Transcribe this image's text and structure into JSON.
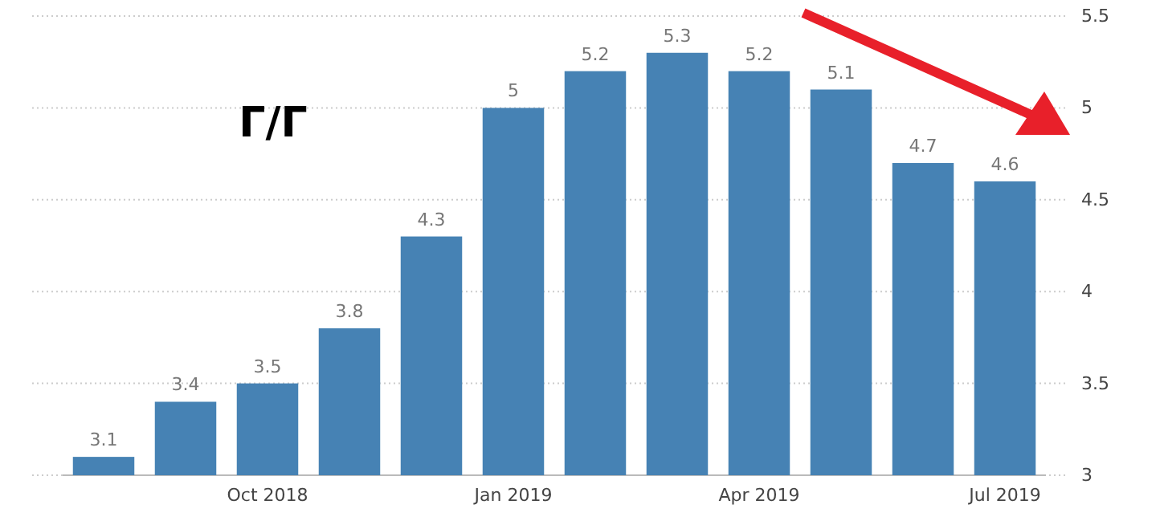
{
  "chart_data": {
    "type": "bar",
    "categories": [
      null,
      null,
      "Oct 2018",
      null,
      null,
      "Jan 2019",
      null,
      null,
      "Apr 2019",
      null,
      null,
      "Jul 2019"
    ],
    "values": [
      3.1,
      3.4,
      3.5,
      3.8,
      4.3,
      5,
      5.2,
      5.3,
      5.2,
      5.1,
      4.7,
      4.6
    ],
    "color": "#4682b4",
    "ylim": [
      3,
      5.5
    ],
    "yticks": [
      3,
      3.5,
      4,
      4.5,
      5,
      5.5
    ],
    "grid": "y",
    "data_labels": true,
    "annotations": [
      "Г/Г"
    ]
  }
}
